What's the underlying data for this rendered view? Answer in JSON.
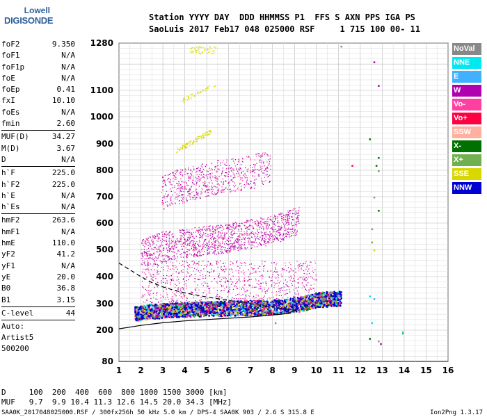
{
  "logo": {
    "line1": "Lowell",
    "line2": "DIGISONDE"
  },
  "header": {
    "line1": "Station YYYY DAY  DDD HHMMSS P1  FFS S AXN PPS IGA PS",
    "line2": "SaoLuis 2017 Feb17 048 025000 RSF     1 715 100 00- 11"
  },
  "params": [
    {
      "name": "foF2",
      "value": "9.350"
    },
    {
      "name": "foF1",
      "value": "N/A"
    },
    {
      "name": "foF1p",
      "value": "N/A"
    },
    {
      "name": "foE",
      "value": "N/A"
    },
    {
      "name": "foEp",
      "value": "0.41"
    },
    {
      "name": "fxI",
      "value": "10.10"
    },
    {
      "name": "foEs",
      "value": "N/A"
    },
    {
      "name": "fmin",
      "value": "2.60"
    },
    {
      "name": "MUF(D)",
      "value": "34.27",
      "sep": true
    },
    {
      "name": "M(D)",
      "value": "3.67"
    },
    {
      "name": "D",
      "value": "N/A"
    },
    {
      "name": "h`F",
      "value": "225.0",
      "sep": true
    },
    {
      "name": "h`F2",
      "value": "225.0"
    },
    {
      "name": "h`E",
      "value": "N/A"
    },
    {
      "name": "h`Es",
      "value": "N/A"
    },
    {
      "name": "hmF2",
      "value": "263.6",
      "sep": true
    },
    {
      "name": "hmF1",
      "value": "N/A"
    },
    {
      "name": "hmE",
      "value": "110.0"
    },
    {
      "name": "yF2",
      "value": "41.2"
    },
    {
      "name": "yF1",
      "value": "N/A"
    },
    {
      "name": "yE",
      "value": "20.0"
    },
    {
      "name": "B0",
      "value": "36.8"
    },
    {
      "name": "B1",
      "value": "3.15"
    },
    {
      "name": "C-level",
      "value": "44",
      "sep": true
    }
  ],
  "auto": {
    "line1": "Auto:",
    "line2": "Artist5",
    "line3": "500200"
  },
  "legend": [
    {
      "label": "NoVal",
      "color": "#888888"
    },
    {
      "label": "NNE",
      "color": "#00e8f0"
    },
    {
      "label": "E",
      "color": "#40b0ff"
    },
    {
      "label": "W",
      "color": "#b000b0"
    },
    {
      "label": "Vo-",
      "color": "#ff40a0"
    },
    {
      "label": "Vo+",
      "color": "#ff0040"
    },
    {
      "label": "SSW",
      "color": "#ffb0a0"
    },
    {
      "label": "X-",
      "color": "#007000"
    },
    {
      "label": "X+",
      "color": "#70b050"
    },
    {
      "label": "SSE",
      "color": "#d8d800"
    },
    {
      "label": "NNW",
      "color": "#0000d0"
    }
  ],
  "footer": {
    "d_line": "D     100  200  400  600  800 1000 1500 3000 [km]",
    "muf_line": "MUF   9.7  9.9 10.4 11.3 12.6 14.5 20.0 34.3 [MHz]",
    "file_line": "SAA0K_2017048025000.RSF / 300fx256h 50 kHz 5.0 km / DPS-4 SAA0K 903 / 2.6 S 315.8 E",
    "version": "Ion2Png 1.3.17"
  },
  "chart_data": {
    "type": "scatter",
    "x_ticks": [
      "1",
      "2",
      "3",
      "4",
      "5",
      "6",
      "7",
      "8",
      "9",
      "10",
      "11",
      "12",
      "13",
      "14",
      "15",
      "16"
    ],
    "y_ticks": [
      "80",
      "200",
      "300",
      "400",
      "500",
      "600",
      "700",
      "800",
      "900",
      "1000",
      "1100",
      "1280"
    ],
    "xlim": [
      1,
      16
    ],
    "ylim": [
      80,
      1280
    ],
    "grid": true,
    "y_scale": "nonlinear (as printed ticks)",
    "series": [
      {
        "mode": "F1 trace (1-hop)",
        "x": [
          1.8,
          2.5,
          3.5,
          4.5,
          5.5,
          6.5,
          7.5,
          8.5,
          9.3,
          10.0,
          10.8
        ],
        "y": [
          250,
          258,
          262,
          266,
          268,
          270,
          272,
          276,
          285,
          300,
          305
        ]
      },
      {
        "mode": "2-hop",
        "x": [
          2.0,
          3.0,
          4.0,
          5.0,
          6.0,
          7.0,
          8.0,
          9.0
        ],
        "y": [
          470,
          500,
          510,
          520,
          530,
          545,
          560,
          590
        ]
      },
      {
        "mode": "3-hop",
        "x": [
          3.0,
          3.5,
          4.5,
          5.5,
          6.5,
          7.5
        ],
        "y": [
          700,
          720,
          740,
          760,
          770,
          790
        ]
      }
    ],
    "model_curves": [
      {
        "name": "solid",
        "x": [
          1.0,
          2.0,
          3.0,
          4.0,
          5.0,
          6.0,
          7.0,
          8.0,
          8.6,
          9.1
        ],
        "y": [
          205,
          218,
          228,
          235,
          240,
          245,
          250,
          257,
          262,
          275
        ]
      },
      {
        "name": "dashed",
        "x": [
          1.0,
          1.5,
          2.0,
          2.5,
          3.0,
          3.5,
          4.0,
          5.0,
          6.0,
          7.0,
          8.0,
          9.0
        ],
        "y": [
          450,
          425,
          400,
          378,
          362,
          350,
          340,
          325,
          312,
          300,
          288,
          275
        ]
      }
    ]
  }
}
